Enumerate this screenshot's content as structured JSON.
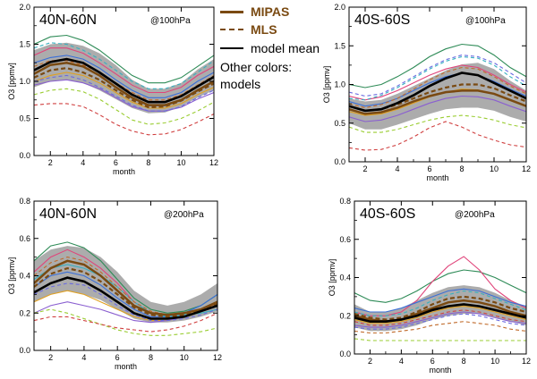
{
  "legend": {
    "mipas": "MIPAS",
    "mls": "MLS",
    "model_mean": "model mean",
    "other_line1": "Other colors:",
    "other_line2": "models"
  },
  "colors": {
    "mipas": "#7a4a12",
    "mls": "#7a4a12",
    "model_mean": "#000000",
    "spread": "#9e9e9e",
    "models": [
      "#2e8b57",
      "#e0457b",
      "#3a6fd8",
      "#e0a020",
      "#8a5fd0",
      "#36b0c0",
      "#c06a2a",
      "#9acd32",
      "#d04040",
      "#6a6ae0",
      "#20a8e0",
      "#b05070"
    ]
  },
  "chart_data": [
    {
      "type": "line",
      "region": "40N-60N",
      "level": "@100hPa",
      "xlabel": "month",
      "ylabel": "O3 [ppmv]",
      "xlim": [
        1,
        12
      ],
      "ylim": [
        0,
        2.0
      ],
      "xticks": [
        2,
        4,
        6,
        8,
        10,
        12
      ],
      "yticks": [
        0.0,
        0.5,
        1.0,
        1.5,
        2.0
      ],
      "x": [
        1,
        2,
        3,
        4,
        5,
        6,
        7,
        8,
        9,
        10,
        11,
        12
      ],
      "band_lower": [
        0.92,
        1.0,
        1.02,
        0.98,
        0.88,
        0.76,
        0.64,
        0.57,
        0.58,
        0.66,
        0.78,
        0.88
      ],
      "band_upper": [
        1.42,
        1.5,
        1.52,
        1.48,
        1.38,
        1.22,
        1.02,
        0.9,
        0.9,
        0.98,
        1.16,
        1.3
      ],
      "mipas": [
        1.1,
        1.22,
        1.25,
        1.2,
        1.08,
        0.92,
        0.78,
        0.68,
        0.68,
        0.75,
        0.88,
        1.0
      ],
      "mls": [
        1.05,
        1.15,
        1.18,
        1.12,
        1.02,
        0.88,
        0.75,
        0.65,
        0.66,
        0.74,
        0.86,
        0.97
      ],
      "model_mean": [
        1.15,
        1.26,
        1.3,
        1.25,
        1.12,
        0.97,
        0.82,
        0.72,
        0.72,
        0.8,
        0.93,
        1.06
      ],
      "models": [
        {
          "values": [
            1.5,
            1.6,
            1.62,
            1.55,
            1.42,
            1.25,
            1.08,
            0.98,
            0.98,
            1.05,
            1.2,
            1.35
          ],
          "dashed": false
        },
        {
          "values": [
            1.35,
            1.45,
            1.45,
            1.38,
            1.25,
            1.1,
            0.95,
            0.85,
            0.85,
            0.92,
            1.08,
            1.2
          ],
          "dashed": false
        },
        {
          "values": [
            1.25,
            1.32,
            1.35,
            1.3,
            1.18,
            1.02,
            0.88,
            0.78,
            0.78,
            0.85,
            1.0,
            1.12
          ],
          "dashed": false
        },
        {
          "values": [
            1.0,
            1.08,
            1.12,
            1.08,
            0.98,
            0.85,
            0.72,
            0.64,
            0.64,
            0.7,
            0.82,
            0.92
          ],
          "dashed": false
        },
        {
          "values": [
            0.95,
            1.0,
            1.02,
            0.98,
            0.9,
            0.78,
            0.66,
            0.6,
            0.6,
            0.65,
            0.76,
            0.85
          ],
          "dashed": false
        },
        {
          "values": [
            1.45,
            1.52,
            1.5,
            1.42,
            1.3,
            1.15,
            1.0,
            0.9,
            0.9,
            0.97,
            1.12,
            1.28
          ],
          "dashed": true
        },
        {
          "values": [
            1.2,
            1.28,
            1.28,
            1.22,
            1.12,
            0.98,
            0.85,
            0.75,
            0.75,
            0.82,
            0.95,
            1.08
          ],
          "dashed": true
        },
        {
          "values": [
            0.82,
            0.88,
            0.9,
            0.86,
            0.76,
            0.62,
            0.48,
            0.42,
            0.44,
            0.5,
            0.6,
            0.72
          ],
          "dashed": true
        },
        {
          "values": [
            0.68,
            0.7,
            0.7,
            0.66,
            0.55,
            0.42,
            0.33,
            0.28,
            0.29,
            0.35,
            0.45,
            0.56
          ],
          "dashed": true
        },
        {
          "values": [
            1.0,
            1.05,
            1.08,
            1.02,
            0.92,
            0.8,
            0.68,
            0.6,
            0.6,
            0.66,
            0.78,
            0.88
          ],
          "dashed": true
        }
      ]
    },
    {
      "type": "line",
      "region": "40S-60S",
      "level": "@100hPa",
      "xlabel": "month",
      "ylabel": "O3 [ppmv]",
      "xlim": [
        1,
        12
      ],
      "ylim": [
        0,
        2.0
      ],
      "xticks": [
        2,
        4,
        6,
        8,
        10,
        12
      ],
      "yticks": [
        0.0,
        0.5,
        1.0,
        1.5,
        2.0
      ],
      "x": [
        1,
        2,
        3,
        4,
        5,
        6,
        7,
        8,
        9,
        10,
        11,
        12
      ],
      "band_lower": [
        0.5,
        0.42,
        0.42,
        0.48,
        0.55,
        0.62,
        0.68,
        0.7,
        0.7,
        0.66,
        0.58,
        0.52
      ],
      "band_upper": [
        0.82,
        0.78,
        0.8,
        0.88,
        0.98,
        1.08,
        1.18,
        1.26,
        1.28,
        1.2,
        1.05,
        0.92
      ],
      "mipas": [
        0.68,
        0.62,
        0.64,
        0.7,
        0.78,
        0.85,
        0.9,
        0.92,
        0.92,
        0.88,
        0.8,
        0.72
      ],
      "mls": [
        0.72,
        0.66,
        0.68,
        0.74,
        0.82,
        0.9,
        0.96,
        1.0,
        1.0,
        0.95,
        0.86,
        0.78
      ],
      "model_mean": [
        0.72,
        0.66,
        0.68,
        0.76,
        0.86,
        0.98,
        1.08,
        1.15,
        1.12,
        1.02,
        0.92,
        0.82
      ],
      "models": [
        {
          "values": [
            1.0,
            0.96,
            1.0,
            1.1,
            1.22,
            1.36,
            1.46,
            1.52,
            1.5,
            1.38,
            1.22,
            1.1
          ],
          "dashed": false
        },
        {
          "values": [
            0.85,
            0.8,
            0.84,
            0.92,
            1.02,
            1.12,
            1.2,
            1.25,
            1.22,
            1.12,
            1.0,
            0.9
          ],
          "dashed": false
        },
        {
          "values": [
            0.78,
            0.72,
            0.75,
            0.82,
            0.92,
            1.02,
            1.1,
            1.15,
            1.12,
            1.04,
            0.94,
            0.85
          ],
          "dashed": false
        },
        {
          "values": [
            0.65,
            0.6,
            0.62,
            0.68,
            0.76,
            0.84,
            0.9,
            0.94,
            0.93,
            0.88,
            0.8,
            0.72
          ],
          "dashed": false
        },
        {
          "values": [
            0.58,
            0.52,
            0.54,
            0.6,
            0.68,
            0.76,
            0.82,
            0.85,
            0.84,
            0.8,
            0.72,
            0.65
          ],
          "dashed": false
        },
        {
          "values": [
            0.82,
            0.8,
            0.86,
            0.96,
            1.08,
            1.2,
            1.3,
            1.36,
            1.34,
            1.25,
            1.1,
            0.98
          ],
          "dashed": true
        },
        {
          "values": [
            0.75,
            0.7,
            0.74,
            0.82,
            0.94,
            1.06,
            1.16,
            1.22,
            1.2,
            1.1,
            0.98,
            0.88
          ],
          "dashed": true
        },
        {
          "values": [
            0.45,
            0.38,
            0.38,
            0.42,
            0.48,
            0.54,
            0.58,
            0.6,
            0.58,
            0.54,
            0.48,
            0.44
          ],
          "dashed": true
        },
        {
          "values": [
            0.18,
            0.15,
            0.16,
            0.22,
            0.32,
            0.44,
            0.52,
            0.45,
            0.35,
            0.28,
            0.22,
            0.19
          ],
          "dashed": true
        },
        {
          "values": [
            0.9,
            0.85,
            0.88,
            0.98,
            1.1,
            1.22,
            1.32,
            1.38,
            1.36,
            1.28,
            1.15,
            1.02
          ],
          "dashed": true
        }
      ]
    },
    {
      "type": "line",
      "region": "40N-60N",
      "level": "@200hPa",
      "xlabel": "month",
      "ylabel": "O3 [ppmv]",
      "xlim": [
        1,
        12
      ],
      "ylim": [
        0,
        0.8
      ],
      "xticks": [
        2,
        4,
        6,
        8,
        10,
        12
      ],
      "yticks": [
        0.0,
        0.2,
        0.4,
        0.6,
        0.8
      ],
      "x": [
        1,
        2,
        3,
        4,
        5,
        6,
        7,
        8,
        9,
        10,
        11,
        12
      ],
      "band_lower": [
        0.26,
        0.3,
        0.32,
        0.3,
        0.27,
        0.22,
        0.17,
        0.15,
        0.15,
        0.16,
        0.18,
        0.21
      ],
      "band_upper": [
        0.48,
        0.54,
        0.56,
        0.55,
        0.5,
        0.42,
        0.32,
        0.26,
        0.24,
        0.26,
        0.3,
        0.36
      ],
      "mipas": [
        0.36,
        0.44,
        0.48,
        0.46,
        0.4,
        0.32,
        0.24,
        0.2,
        0.19,
        0.2,
        0.22,
        0.26
      ],
      "mls": [
        0.34,
        0.41,
        0.44,
        0.42,
        0.37,
        0.3,
        0.23,
        0.19,
        0.18,
        0.19,
        0.21,
        0.25
      ],
      "model_mean": [
        0.31,
        0.36,
        0.39,
        0.37,
        0.32,
        0.26,
        0.2,
        0.17,
        0.17,
        0.18,
        0.21,
        0.24
      ],
      "models": [
        {
          "values": [
            0.48,
            0.56,
            0.58,
            0.55,
            0.48,
            0.38,
            0.28,
            0.22,
            0.2,
            0.21,
            0.24,
            0.3
          ],
          "dashed": false
        },
        {
          "values": [
            0.42,
            0.5,
            0.54,
            0.5,
            0.44,
            0.36,
            0.26,
            0.2,
            0.18,
            0.2,
            0.22,
            0.26
          ],
          "dashed": false
        },
        {
          "values": [
            0.34,
            0.4,
            0.42,
            0.4,
            0.35,
            0.28,
            0.22,
            0.18,
            0.18,
            0.2,
            0.24,
            0.3
          ],
          "dashed": false
        },
        {
          "values": [
            0.26,
            0.3,
            0.32,
            0.3,
            0.26,
            0.22,
            0.18,
            0.16,
            0.16,
            0.18,
            0.22,
            0.26
          ],
          "dashed": false
        },
        {
          "values": [
            0.2,
            0.24,
            0.26,
            0.24,
            0.22,
            0.19,
            0.16,
            0.15,
            0.16,
            0.18,
            0.21,
            0.24
          ],
          "dashed": false
        },
        {
          "values": [
            0.38,
            0.44,
            0.46,
            0.44,
            0.4,
            0.34,
            0.26,
            0.2,
            0.18,
            0.19,
            0.2,
            0.22
          ],
          "dashed": false
        },
        {
          "values": [
            0.4,
            0.47,
            0.5,
            0.48,
            0.42,
            0.34,
            0.26,
            0.21,
            0.19,
            0.2,
            0.22,
            0.25
          ],
          "dashed": true
        },
        {
          "values": [
            0.2,
            0.22,
            0.2,
            0.17,
            0.14,
            0.11,
            0.09,
            0.08,
            0.08,
            0.09,
            0.1,
            0.12
          ],
          "dashed": true
        },
        {
          "values": [
            0.16,
            0.18,
            0.18,
            0.16,
            0.14,
            0.12,
            0.11,
            0.1,
            0.11,
            0.13,
            0.16,
            0.2
          ],
          "dashed": true
        },
        {
          "values": [
            0.3,
            0.34,
            0.36,
            0.35,
            0.3,
            0.24,
            0.19,
            0.16,
            0.16,
            0.17,
            0.19,
            0.22
          ],
          "dashed": true
        }
      ]
    },
    {
      "type": "line",
      "region": "40S-60S",
      "level": "@200hPa",
      "xlabel": "month",
      "ylabel": "O3 [ppmv]",
      "xlim": [
        1,
        12
      ],
      "ylim": [
        0,
        0.8
      ],
      "xticks": [
        2,
        4,
        6,
        8,
        10,
        12
      ],
      "yticks": [
        0.0,
        0.2,
        0.4,
        0.6,
        0.8
      ],
      "x": [
        1,
        2,
        3,
        4,
        5,
        6,
        7,
        8,
        9,
        10,
        11,
        12
      ],
      "band_lower": [
        0.14,
        0.12,
        0.12,
        0.13,
        0.15,
        0.18,
        0.2,
        0.21,
        0.21,
        0.19,
        0.17,
        0.15
      ],
      "band_upper": [
        0.26,
        0.22,
        0.22,
        0.24,
        0.28,
        0.32,
        0.35,
        0.36,
        0.35,
        0.32,
        0.28,
        0.25
      ],
      "mipas": [
        0.2,
        0.18,
        0.17,
        0.18,
        0.21,
        0.24,
        0.27,
        0.28,
        0.27,
        0.25,
        0.22,
        0.2
      ],
      "mls": [
        0.21,
        0.19,
        0.18,
        0.19,
        0.22,
        0.26,
        0.29,
        0.3,
        0.29,
        0.27,
        0.24,
        0.22
      ],
      "model_mean": [
        0.19,
        0.17,
        0.17,
        0.18,
        0.2,
        0.23,
        0.25,
        0.26,
        0.25,
        0.23,
        0.21,
        0.19
      ],
      "models": [
        {
          "values": [
            0.32,
            0.28,
            0.27,
            0.29,
            0.33,
            0.38,
            0.42,
            0.44,
            0.43,
            0.4,
            0.36,
            0.32
          ],
          "dashed": false
        },
        {
          "values": [
            0.22,
            0.2,
            0.2,
            0.22,
            0.28,
            0.38,
            0.46,
            0.51,
            0.44,
            0.34,
            0.28,
            0.24
          ],
          "dashed": false
        },
        {
          "values": [
            0.24,
            0.22,
            0.22,
            0.24,
            0.27,
            0.3,
            0.33,
            0.34,
            0.33,
            0.3,
            0.27,
            0.25
          ],
          "dashed": false
        },
        {
          "values": [
            0.18,
            0.16,
            0.16,
            0.17,
            0.19,
            0.22,
            0.24,
            0.25,
            0.24,
            0.22,
            0.2,
            0.18
          ],
          "dashed": false
        },
        {
          "values": [
            0.15,
            0.14,
            0.14,
            0.15,
            0.17,
            0.19,
            0.21,
            0.22,
            0.21,
            0.19,
            0.17,
            0.16
          ],
          "dashed": false
        },
        {
          "values": [
            0.22,
            0.2,
            0.2,
            0.21,
            0.24,
            0.28,
            0.31,
            0.33,
            0.32,
            0.29,
            0.26,
            0.23
          ],
          "dashed": true
        },
        {
          "values": [
            0.12,
            0.11,
            0.11,
            0.12,
            0.13,
            0.15,
            0.16,
            0.17,
            0.16,
            0.15,
            0.13,
            0.12
          ],
          "dashed": true
        },
        {
          "values": [
            0.08,
            0.07,
            0.07,
            0.07,
            0.07,
            0.07,
            0.07,
            0.07,
            0.07,
            0.07,
            0.07,
            0.07
          ],
          "dashed": true
        },
        {
          "values": [
            0.17,
            0.15,
            0.15,
            0.16,
            0.18,
            0.2,
            0.22,
            0.23,
            0.22,
            0.2,
            0.18,
            0.17
          ],
          "dashed": true
        },
        {
          "values": [
            0.14,
            0.13,
            0.13,
            0.14,
            0.16,
            0.18,
            0.2,
            0.21,
            0.2,
            0.18,
            0.16,
            0.15
          ],
          "dashed": true
        }
      ]
    }
  ]
}
